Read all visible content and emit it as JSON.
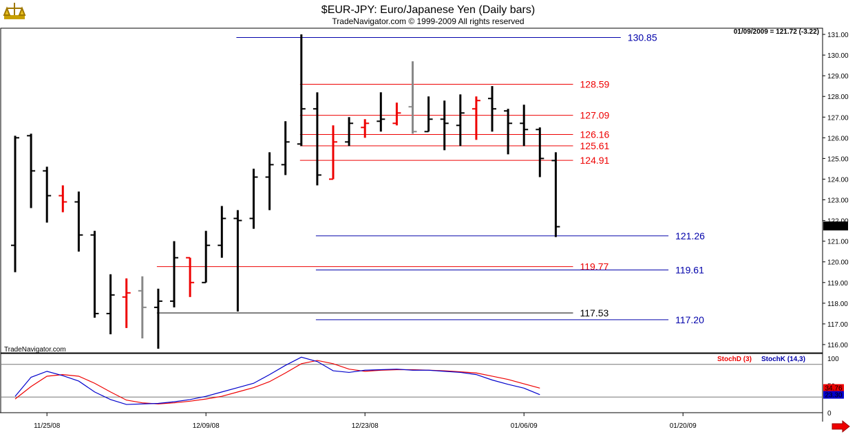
{
  "chart_data": {
    "type": "ohlc",
    "title": "$EUR-JPY:  Euro/Japanese Yen  (Daily bars)",
    "subtitle": "TradeNavigator.com © 1999-2009 All rights reserved",
    "watermark": "TradeNavigator.com",
    "readout": "01/09/2009 = 121.72 (-3.22)",
    "last_price_label": "121.72",
    "ylim": [
      115.6,
      131.3
    ],
    "y_ticks": [
      "116.00",
      "117.00",
      "118.00",
      "119.00",
      "120.00",
      "121.00",
      "122.00",
      "123.00",
      "124.00",
      "125.00",
      "126.00",
      "127.00",
      "128.00",
      "129.00",
      "130.00",
      "131.00"
    ],
    "x_ticks": [
      {
        "label": "11/25/08",
        "index": 2
      },
      {
        "label": "12/09/08",
        "index": 12
      },
      {
        "label": "12/23/08",
        "index": 22
      },
      {
        "label": "01/06/09",
        "index": 32
      },
      {
        "label": "01/20/09",
        "index": 42
      }
    ],
    "bars": [
      {
        "o": 120.8,
        "h": 126.1,
        "l": 119.5,
        "c": 126.0,
        "color": "#000000"
      },
      {
        "o": 126.1,
        "h": 126.2,
        "l": 122.6,
        "c": 124.4,
        "color": "#000000"
      },
      {
        "o": 124.4,
        "h": 124.6,
        "l": 121.9,
        "c": 123.2,
        "color": "#000000"
      },
      {
        "o": 123.2,
        "h": 123.7,
        "l": 122.4,
        "c": 122.9,
        "color": "#ee0000"
      },
      {
        "o": 122.9,
        "h": 123.4,
        "l": 120.5,
        "c": 121.3,
        "color": "#000000"
      },
      {
        "o": 121.3,
        "h": 121.5,
        "l": 117.3,
        "c": 117.5,
        "color": "#000000"
      },
      {
        "o": 117.5,
        "h": 119.4,
        "l": 116.5,
        "c": 118.4,
        "color": "#000000"
      },
      {
        "o": 118.3,
        "h": 119.2,
        "l": 116.8,
        "c": 118.5,
        "color": "#ee0000"
      },
      {
        "o": 118.6,
        "h": 119.3,
        "l": 116.3,
        "c": 117.8,
        "color": "#888888"
      },
      {
        "o": 117.8,
        "h": 118.7,
        "l": 115.8,
        "c": 118.1,
        "color": "#000000"
      },
      {
        "o": 118.1,
        "h": 121.0,
        "l": 117.8,
        "c": 120.2,
        "color": "#000000"
      },
      {
        "o": 120.2,
        "h": 120.2,
        "l": 118.3,
        "c": 119.0,
        "color": "#ee0000"
      },
      {
        "o": 119.0,
        "h": 121.5,
        "l": 119.0,
        "c": 120.8,
        "color": "#000000"
      },
      {
        "o": 120.8,
        "h": 122.7,
        "l": 120.2,
        "c": 122.1,
        "color": "#000000"
      },
      {
        "o": 122.1,
        "h": 122.5,
        "l": 117.6,
        "c": 122.0,
        "color": "#000000"
      },
      {
        "o": 122.1,
        "h": 124.5,
        "l": 121.6,
        "c": 124.1,
        "color": "#000000"
      },
      {
        "o": 124.1,
        "h": 125.3,
        "l": 122.5,
        "c": 124.7,
        "color": "#000000"
      },
      {
        "o": 124.7,
        "h": 126.8,
        "l": 124.2,
        "c": 125.8,
        "color": "#000000"
      },
      {
        "o": 125.7,
        "h": 131.0,
        "l": 125.6,
        "c": 127.4,
        "color": "#000000"
      },
      {
        "o": 127.4,
        "h": 128.2,
        "l": 123.7,
        "c": 124.2,
        "color": "#000000"
      },
      {
        "o": 124.0,
        "h": 126.6,
        "l": 124.0,
        "c": 125.8,
        "color": "#ee0000"
      },
      {
        "o": 125.8,
        "h": 127.0,
        "l": 125.6,
        "c": 126.7,
        "color": "#000000"
      },
      {
        "o": 126.5,
        "h": 126.9,
        "l": 126.0,
        "c": 126.7,
        "color": "#ee0000"
      },
      {
        "o": 126.8,
        "h": 128.2,
        "l": 126.3,
        "c": 126.9,
        "color": "#000000"
      },
      {
        "o": 126.7,
        "h": 127.7,
        "l": 126.6,
        "c": 127.2,
        "color": "#ee0000"
      },
      {
        "o": 127.5,
        "h": 129.7,
        "l": 126.2,
        "c": 126.3,
        "color": "#888888"
      },
      {
        "o": 126.3,
        "h": 128.0,
        "l": 126.3,
        "c": 126.9,
        "color": "#000000"
      },
      {
        "o": 126.9,
        "h": 127.8,
        "l": 125.4,
        "c": 126.7,
        "color": "#000000"
      },
      {
        "o": 126.6,
        "h": 128.1,
        "l": 125.6,
        "c": 127.2,
        "color": "#000000"
      },
      {
        "o": 127.4,
        "h": 128.0,
        "l": 125.9,
        "c": 127.8,
        "color": "#ee0000"
      },
      {
        "o": 127.9,
        "h": 128.5,
        "l": 126.3,
        "c": 127.4,
        "color": "#000000"
      },
      {
        "o": 127.3,
        "h": 127.4,
        "l": 125.2,
        "c": 126.7,
        "color": "#000000"
      },
      {
        "o": 126.7,
        "h": 127.6,
        "l": 125.6,
        "c": 126.4,
        "color": "#000000"
      },
      {
        "o": 126.4,
        "h": 126.5,
        "l": 124.1,
        "c": 125.0,
        "color": "#000000"
      },
      {
        "o": 124.9,
        "h": 125.3,
        "l": 121.2,
        "c": 121.7,
        "color": "#000000"
      }
    ],
    "levels": [
      {
        "label": "130.85",
        "value": 130.85,
        "color": "#0000aa",
        "from": 14,
        "to": 38
      },
      {
        "label": "128.59",
        "value": 128.59,
        "color": "#ee0000",
        "from": 18,
        "to": 35
      },
      {
        "label": "127.09",
        "value": 127.09,
        "color": "#ee0000",
        "from": 18,
        "to": 35
      },
      {
        "label": "126.16",
        "value": 126.16,
        "color": "#ee0000",
        "from": 18,
        "to": 35
      },
      {
        "label": "125.61",
        "value": 125.61,
        "color": "#ee0000",
        "from": 18,
        "to": 35
      },
      {
        "label": "124.91",
        "value": 124.91,
        "color": "#ee0000",
        "from": 18,
        "to": 35
      },
      {
        "label": "121.26",
        "value": 121.26,
        "color": "#0000aa",
        "from": 19,
        "to": 41
      },
      {
        "label": "119.77",
        "value": 119.77,
        "color": "#ee0000",
        "from": 9,
        "to": 35
      },
      {
        "label": "119.61",
        "value": 119.61,
        "color": "#0000aa",
        "from": 19,
        "to": 41
      },
      {
        "label": "117.53",
        "value": 117.53,
        "color": "#000000",
        "from": 9,
        "to": 35
      },
      {
        "label": "117.20",
        "value": 117.2,
        "color": "#0000aa",
        "from": 19,
        "to": 41
      }
    ],
    "stochastic": {
      "legend_d": "StochD (3)",
      "legend_k": "StochK (14,3)",
      "ylim": [
        0,
        100
      ],
      "y_ticks": [
        "100",
        "50",
        "0"
      ],
      "reference_lines": [
        80,
        20
      ],
      "d_value_label": "34.76",
      "k_value_label": "23.30",
      "k_color": "#0000cc",
      "d_color": "#ee0000",
      "k": [
        20,
        55,
        66,
        58,
        48,
        28,
        14,
        5,
        6,
        7,
        10,
        14,
        20,
        28,
        36,
        44,
        60,
        77,
        92,
        84,
        67,
        64,
        68,
        69,
        70,
        68,
        68,
        66,
        64,
        60,
        50,
        42,
        35,
        23
      ],
      "d": [
        15,
        38,
        57,
        60,
        57,
        44,
        28,
        13,
        8,
        6,
        8,
        11,
        15,
        20,
        28,
        36,
        47,
        63,
        80,
        86,
        80,
        70,
        66,
        68,
        69,
        69,
        68,
        67,
        65,
        63,
        57,
        51,
        43,
        35
      ]
    }
  }
}
